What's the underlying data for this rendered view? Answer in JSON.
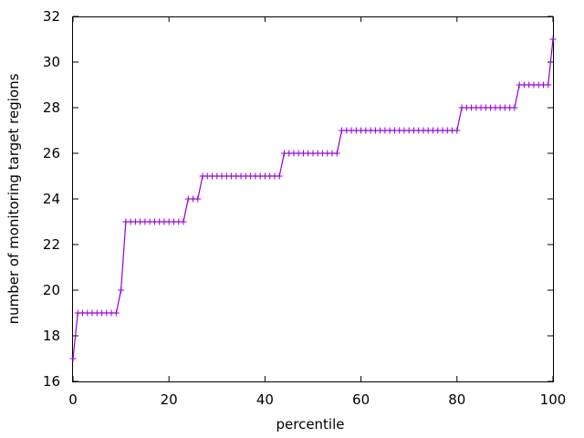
{
  "chart_data": {
    "type": "line",
    "title": "",
    "xlabel": "percentile",
    "ylabel": "number of monitoring target regions",
    "xlim": [
      0,
      100
    ],
    "ylim": [
      16,
      32
    ],
    "xticks": [
      0,
      20,
      40,
      60,
      80,
      100
    ],
    "yticks": [
      16,
      18,
      20,
      22,
      24,
      26,
      28,
      30,
      32
    ],
    "xtick_labels": [
      "0",
      "20",
      "40",
      "60",
      "80",
      "100"
    ],
    "ytick_labels": [
      "16",
      "18",
      "20",
      "22",
      "24",
      "26",
      "28",
      "30",
      "32"
    ],
    "grid": false,
    "legend": "none",
    "marker": "plus",
    "line_color": "#9400d3",
    "series": [
      {
        "x": [
          0,
          1,
          2,
          3,
          4,
          5,
          6,
          7,
          8,
          9,
          10,
          11,
          12,
          13,
          14,
          15,
          16,
          17,
          18,
          19,
          20,
          21,
          22,
          23,
          24,
          25,
          26,
          27,
          28,
          29,
          30,
          31,
          32,
          33,
          34,
          35,
          36,
          37,
          38,
          39,
          40,
          41,
          42,
          43,
          44,
          45,
          46,
          47,
          48,
          49,
          50,
          51,
          52,
          53,
          54,
          55,
          56,
          57,
          58,
          59,
          60,
          61,
          62,
          63,
          64,
          65,
          66,
          67,
          68,
          69,
          70,
          71,
          72,
          73,
          74,
          75,
          76,
          77,
          78,
          79,
          80,
          81,
          82,
          83,
          84,
          85,
          86,
          87,
          88,
          89,
          90,
          91,
          92,
          93,
          94,
          95,
          96,
          97,
          98,
          99,
          100
        ],
        "values": [
          17,
          19,
          19,
          19,
          19,
          19,
          19,
          19,
          19,
          19,
          20,
          23,
          23,
          23,
          23,
          23,
          23,
          23,
          23,
          23,
          23,
          23,
          23,
          23,
          24,
          24,
          24,
          25,
          25,
          25,
          25,
          25,
          25,
          25,
          25,
          25,
          25,
          25,
          25,
          25,
          25,
          25,
          25,
          25,
          26,
          26,
          26,
          26,
          26,
          26,
          26,
          26,
          26,
          26,
          26,
          26,
          27,
          27,
          27,
          27,
          27,
          27,
          27,
          27,
          27,
          27,
          27,
          27,
          27,
          27,
          27,
          27,
          27,
          27,
          27,
          27,
          27,
          27,
          27,
          27,
          27,
          28,
          28,
          28,
          28,
          28,
          28,
          28,
          28,
          28,
          28,
          28,
          28,
          29,
          29,
          29,
          29,
          29,
          29,
          29,
          31
        ]
      }
    ]
  }
}
